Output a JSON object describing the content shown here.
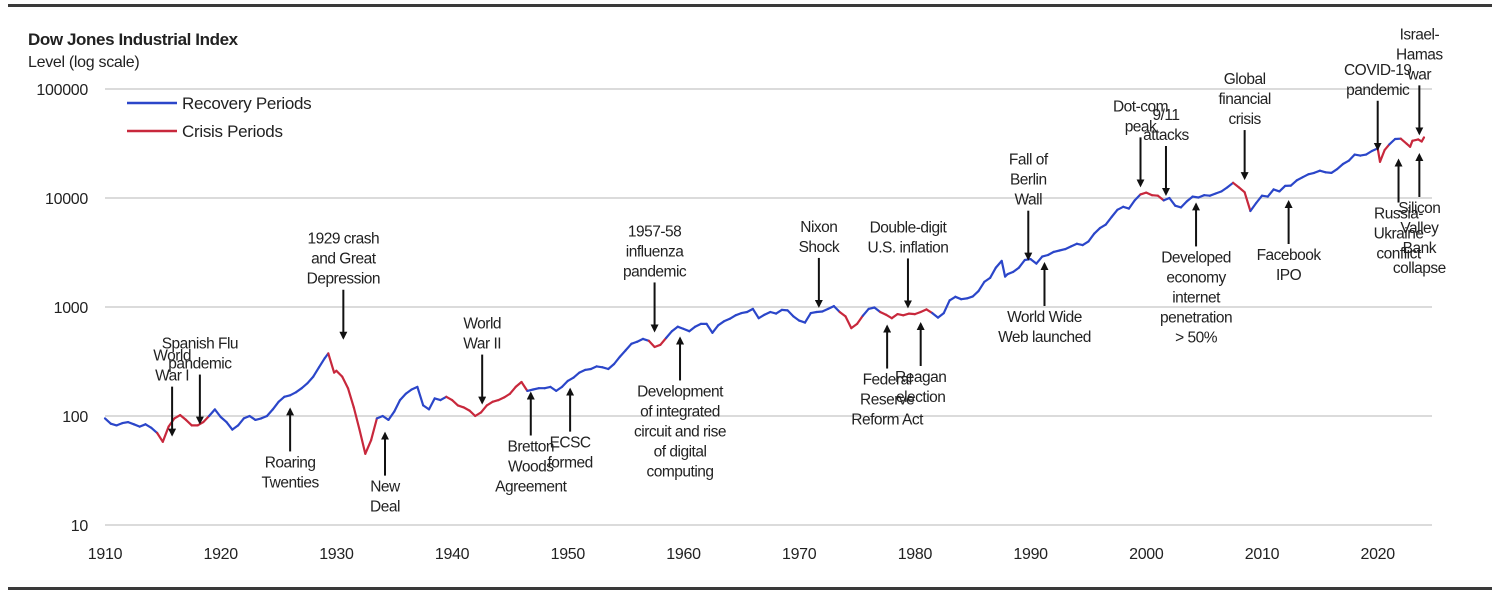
{
  "chart_data": {
    "type": "line",
    "title": "Dow Jones Industrial Index",
    "ylabel": "Level (log scale)",
    "log_y": true,
    "xlim": [
      1910,
      2024
    ],
    "ylim": [
      10,
      100000
    ],
    "yticks": [
      10,
      100,
      1000,
      10000,
      100000
    ],
    "xticks": [
      1910,
      1920,
      1930,
      1940,
      1950,
      1960,
      1970,
      1980,
      1990,
      2000,
      2010,
      2020
    ],
    "grid": "horizontal",
    "legend_position": "top-left",
    "colors": {
      "recovery": "#2b46c9",
      "crisis": "#c8283c"
    },
    "series": [
      {
        "name": "Recovery Periods",
        "color": "#2b46c9"
      },
      {
        "name": "Crisis Periods",
        "color": "#c8283c"
      }
    ],
    "points": [
      [
        1910,
        95
      ],
      [
        1910.5,
        85
      ],
      [
        1911,
        82
      ],
      [
        1911.5,
        86
      ],
      [
        1912,
        88
      ],
      [
        1912.5,
        84
      ],
      [
        1913,
        80
      ],
      [
        1913.5,
        84
      ],
      [
        1914,
        78
      ],
      [
        1914.5,
        70
      ],
      [
        1915,
        58
      ],
      [
        1915.5,
        80
      ],
      [
        1916,
        95
      ],
      [
        1916.5,
        102
      ],
      [
        1917,
        92
      ],
      [
        1917.5,
        82
      ],
      [
        1918,
        82
      ],
      [
        1918.5,
        88
      ],
      [
        1919,
        100
      ],
      [
        1919.5,
        115
      ],
      [
        1920,
        98
      ],
      [
        1920.5,
        88
      ],
      [
        1921,
        75
      ],
      [
        1921.5,
        82
      ],
      [
        1922,
        95
      ],
      [
        1922.5,
        100
      ],
      [
        1923,
        92
      ],
      [
        1923.5,
        95
      ],
      [
        1924,
        100
      ],
      [
        1924.5,
        115
      ],
      [
        1925,
        135
      ],
      [
        1925.5,
        150
      ],
      [
        1926,
        155
      ],
      [
        1926.5,
        165
      ],
      [
        1927,
        180
      ],
      [
        1927.5,
        200
      ],
      [
        1928,
        230
      ],
      [
        1928.5,
        280
      ],
      [
        1929,
        340
      ],
      [
        1929.3,
        375
      ],
      [
        1929.8,
        250
      ],
      [
        1930,
        260
      ],
      [
        1930.5,
        230
      ],
      [
        1931,
        180
      ],
      [
        1931.5,
        120
      ],
      [
        1932,
        75
      ],
      [
        1932.5,
        45
      ],
      [
        1933,
        60
      ],
      [
        1933.5,
        95
      ],
      [
        1934,
        100
      ],
      [
        1934.5,
        92
      ],
      [
        1935,
        110
      ],
      [
        1935.5,
        140
      ],
      [
        1936,
        160
      ],
      [
        1936.5,
        175
      ],
      [
        1937,
        185
      ],
      [
        1937.5,
        125
      ],
      [
        1938,
        115
      ],
      [
        1938.5,
        145
      ],
      [
        1939,
        140
      ],
      [
        1939.5,
        150
      ],
      [
        1940,
        140
      ],
      [
        1940.5,
        125
      ],
      [
        1941,
        120
      ],
      [
        1941.5,
        112
      ],
      [
        1942,
        100
      ],
      [
        1942.5,
        108
      ],
      [
        1943,
        125
      ],
      [
        1943.5,
        135
      ],
      [
        1944,
        140
      ],
      [
        1944.5,
        148
      ],
      [
        1945,
        160
      ],
      [
        1945.5,
        185
      ],
      [
        1946,
        205
      ],
      [
        1946.5,
        170
      ],
      [
        1947,
        175
      ],
      [
        1947.5,
        180
      ],
      [
        1948,
        180
      ],
      [
        1948.5,
        185
      ],
      [
        1949,
        170
      ],
      [
        1949.5,
        185
      ],
      [
        1950,
        210
      ],
      [
        1950.5,
        225
      ],
      [
        1951,
        250
      ],
      [
        1951.5,
        265
      ],
      [
        1952,
        270
      ],
      [
        1952.5,
        285
      ],
      [
        1953,
        280
      ],
      [
        1953.5,
        270
      ],
      [
        1954,
        300
      ],
      [
        1954.5,
        350
      ],
      [
        1955,
        400
      ],
      [
        1955.5,
        460
      ],
      [
        1956,
        480
      ],
      [
        1956.5,
        510
      ],
      [
        1957,
        490
      ],
      [
        1957.5,
        430
      ],
      [
        1958,
        450
      ],
      [
        1958.5,
        520
      ],
      [
        1959,
        600
      ],
      [
        1959.5,
        660
      ],
      [
        1960,
        630
      ],
      [
        1960.5,
        600
      ],
      [
        1961,
        660
      ],
      [
        1961.5,
        700
      ],
      [
        1962,
        700
      ],
      [
        1962.5,
        580
      ],
      [
        1963,
        680
      ],
      [
        1963.5,
        740
      ],
      [
        1964,
        780
      ],
      [
        1964.5,
        840
      ],
      [
        1965,
        880
      ],
      [
        1965.5,
        900
      ],
      [
        1966,
        960
      ],
      [
        1966.5,
        790
      ],
      [
        1967,
        850
      ],
      [
        1967.5,
        900
      ],
      [
        1968,
        870
      ],
      [
        1968.5,
        940
      ],
      [
        1969,
        930
      ],
      [
        1969.5,
        820
      ],
      [
        1970,
        750
      ],
      [
        1970.5,
        720
      ],
      [
        1971,
        880
      ],
      [
        1971.5,
        900
      ],
      [
        1972,
        910
      ],
      [
        1972.5,
        960
      ],
      [
        1973,
        1020
      ],
      [
        1973.5,
        900
      ],
      [
        1974,
        820
      ],
      [
        1974.5,
        640
      ],
      [
        1975,
        700
      ],
      [
        1975.5,
        830
      ],
      [
        1976,
        960
      ],
      [
        1976.5,
        990
      ],
      [
        1977,
        900
      ],
      [
        1977.5,
        850
      ],
      [
        1978,
        790
      ],
      [
        1978.5,
        860
      ],
      [
        1979,
        840
      ],
      [
        1979.5,
        870
      ],
      [
        1980,
        860
      ],
      [
        1980.5,
        900
      ],
      [
        1981,
        950
      ],
      [
        1981.5,
        880
      ],
      [
        1982,
        800
      ],
      [
        1982.5,
        880
      ],
      [
        1983,
        1150
      ],
      [
        1983.5,
        1240
      ],
      [
        1984,
        1180
      ],
      [
        1984.5,
        1200
      ],
      [
        1985,
        1250
      ],
      [
        1985.5,
        1400
      ],
      [
        1986,
        1700
      ],
      [
        1986.5,
        1850
      ],
      [
        1987,
        2300
      ],
      [
        1987.5,
        2650
      ],
      [
        1987.8,
        1900
      ],
      [
        1988,
        2000
      ],
      [
        1988.5,
        2100
      ],
      [
        1989,
        2300
      ],
      [
        1989.5,
        2700
      ],
      [
        1990,
        2750
      ],
      [
        1990.5,
        2500
      ],
      [
        1991,
        2900
      ],
      [
        1991.5,
        3000
      ],
      [
        1992,
        3200
      ],
      [
        1992.5,
        3300
      ],
      [
        1993,
        3400
      ],
      [
        1993.5,
        3600
      ],
      [
        1994,
        3800
      ],
      [
        1994.5,
        3700
      ],
      [
        1995,
        4000
      ],
      [
        1995.5,
        4700
      ],
      [
        1996,
        5300
      ],
      [
        1996.5,
        5700
      ],
      [
        1997,
        6700
      ],
      [
        1997.5,
        7800
      ],
      [
        1998,
        8300
      ],
      [
        1998.5,
        8000
      ],
      [
        1999,
        9500
      ],
      [
        1999.5,
        10800
      ],
      [
        2000,
        11200
      ],
      [
        2000.5,
        10600
      ],
      [
        2001,
        10500
      ],
      [
        2001.5,
        9500
      ],
      [
        2002,
        10000
      ],
      [
        2002.5,
        8500
      ],
      [
        2003,
        8200
      ],
      [
        2003.5,
        9300
      ],
      [
        2004,
        10300
      ],
      [
        2004.5,
        10100
      ],
      [
        2005,
        10600
      ],
      [
        2005.5,
        10500
      ],
      [
        2006,
        11000
      ],
      [
        2006.5,
        11500
      ],
      [
        2007,
        12500
      ],
      [
        2007.5,
        13800
      ],
      [
        2008,
        12500
      ],
      [
        2008.5,
        11300
      ],
      [
        2009,
        7600
      ],
      [
        2009.5,
        9000
      ],
      [
        2010,
        10500
      ],
      [
        2010.5,
        10300
      ],
      [
        2011,
        12000
      ],
      [
        2011.5,
        11500
      ],
      [
        2012,
        12900
      ],
      [
        2012.5,
        13000
      ],
      [
        2013,
        14500
      ],
      [
        2013.5,
        15500
      ],
      [
        2014,
        16500
      ],
      [
        2014.5,
        17000
      ],
      [
        2015,
        17800
      ],
      [
        2015.5,
        17200
      ],
      [
        2016,
        17000
      ],
      [
        2016.5,
        18400
      ],
      [
        2017,
        20500
      ],
      [
        2017.5,
        22000
      ],
      [
        2018,
        25000
      ],
      [
        2018.5,
        24500
      ],
      [
        2019,
        25000
      ],
      [
        2019.5,
        27000
      ],
      [
        2020,
        28500
      ],
      [
        2020.2,
        21500
      ],
      [
        2020.6,
        27500
      ],
      [
        2021,
        31000
      ],
      [
        2021.5,
        34800
      ],
      [
        2022,
        35000
      ],
      [
        2022.5,
        31500
      ],
      [
        2022.8,
        29500
      ],
      [
        2023,
        33500
      ],
      [
        2023.5,
        34500
      ],
      [
        2023.8,
        33000
      ],
      [
        2024,
        36000
      ]
    ],
    "crisis_periods": [
      [
        1914.5,
        1919
      ],
      [
        1929.3,
        1933.5
      ],
      [
        1939.5,
        1946.5
      ],
      [
        1957,
        1958.5
      ],
      [
        1973.5,
        1975.5
      ],
      [
        1977,
        1981.5
      ],
      [
        1999.5,
        2001.5
      ],
      [
        2007.5,
        2009.2
      ],
      [
        2019.8,
        2021
      ],
      [
        2022,
        2024
      ]
    ],
    "annotations": [
      {
        "lines": [
          "World",
          "War I"
        ],
        "year": 1915.8,
        "value": 62,
        "dir": "down"
      },
      {
        "lines": [
          "Spanish Flu",
          "pandemic"
        ],
        "year": 1918.2,
        "value": 80,
        "dir": "down"
      },
      {
        "lines": [
          "Roaring",
          "Twenties"
        ],
        "year": 1926,
        "value": 125,
        "dir": "up"
      },
      {
        "lines": [
          "1929 crash",
          "and Great",
          "Depression"
        ],
        "year": 1930.6,
        "value": 480,
        "dir": "down"
      },
      {
        "lines": [
          "New",
          "Deal"
        ],
        "year": 1934.2,
        "value": 75,
        "dir": "up"
      },
      {
        "lines": [
          "World",
          "War II"
        ],
        "year": 1942.6,
        "value": 122,
        "dir": "down"
      },
      {
        "lines": [
          "Bretton",
          "Woods",
          "Agreement"
        ],
        "year": 1946.8,
        "value": 175,
        "dir": "up"
      },
      {
        "lines": [
          "ECSC",
          "formed"
        ],
        "year": 1950.2,
        "value": 190,
        "dir": "up"
      },
      {
        "lines": [
          "1957-58",
          "influenza",
          "pandemic"
        ],
        "year": 1957.5,
        "value": 560,
        "dir": "down"
      },
      {
        "lines": [
          "Development",
          "of integrated",
          "circuit and rise",
          "of digital",
          "computing"
        ],
        "year": 1959.7,
        "value": 560,
        "dir": "up"
      },
      {
        "lines": [
          "Nixon",
          "Shock"
        ],
        "year": 1971.7,
        "value": 940,
        "dir": "down"
      },
      {
        "lines": [
          "Double-digit",
          "U.S. inflation"
        ],
        "year": 1979.4,
        "value": 930,
        "dir": "down"
      },
      {
        "lines": [
          "Federal",
          "Reserve",
          "Reform Act"
        ],
        "year": 1977.6,
        "value": 720,
        "dir": "up"
      },
      {
        "lines": [
          "Reagan",
          "election"
        ],
        "year": 1980.5,
        "value": 760,
        "dir": "up"
      },
      {
        "lines": [
          "Fall of",
          "Berlin",
          "Wall"
        ],
        "year": 1989.8,
        "value": 2550,
        "dir": "down"
      },
      {
        "lines": [
          "World Wide",
          "Web launched"
        ],
        "year": 1991.2,
        "value": 2700,
        "dir": "up"
      },
      {
        "lines": [
          "Dot-com",
          "peak"
        ],
        "year": 1999.5,
        "value": 12000,
        "dir": "down"
      },
      {
        "lines": [
          "9/11",
          "attacks"
        ],
        "year": 2001.7,
        "value": 10000,
        "dir": "down"
      },
      {
        "lines": [
          "Developed",
          "economy",
          "internet",
          "penetration",
          "> 50%"
        ],
        "year": 2004.3,
        "value": 9500,
        "dir": "up"
      },
      {
        "lines": [
          "Global",
          "financial",
          "crisis"
        ],
        "year": 2008.5,
        "value": 14000,
        "dir": "down"
      },
      {
        "lines": [
          "Facebook",
          "IPO"
        ],
        "year": 2012.3,
        "value": 10000,
        "dir": "up"
      },
      {
        "lines": [
          "COVID-19",
          "pandemic"
        ],
        "year": 2020,
        "value": 26000,
        "dir": "down"
      },
      {
        "lines": [
          "Israel-",
          "Hamas",
          "war"
        ],
        "year": 2023.6,
        "value": 36000,
        "dir": "down"
      },
      {
        "lines": [
          "Russia-",
          "Ukraine",
          "conflict"
        ],
        "year": 2021.8,
        "value": 24000,
        "dir": "up"
      },
      {
        "lines": [
          "Silicon",
          "Valley",
          "Bank",
          "collapse"
        ],
        "year": 2023.6,
        "value": 27000,
        "dir": "up"
      }
    ]
  }
}
